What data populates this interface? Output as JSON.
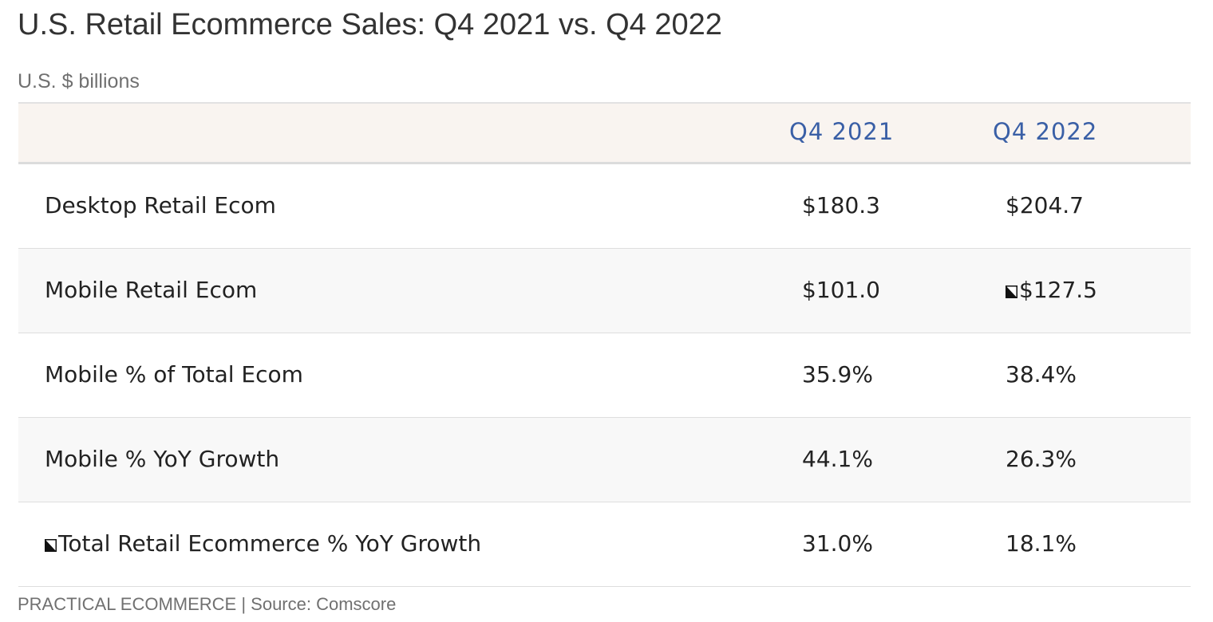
{
  "chart_data": {
    "type": "table",
    "title": "U.S. Retail Ecommerce Sales: Q4 2021 vs. Q4 2022",
    "subtitle": "U.S. $ billions",
    "columns": [
      "Q4 2021",
      "Q4 2022"
    ],
    "rows": [
      {
        "label": "Desktop Retail Ecom",
        "values": [
          "$180.3",
          "$204.7"
        ]
      },
      {
        "label": "Mobile Retail Ecom",
        "values": [
          "$101.0",
          "$127.5"
        ]
      },
      {
        "label": "Mobile % of Total Ecom",
        "values": [
          "35.9%",
          "38.4%"
        ]
      },
      {
        "label": "Mobile % YoY Growth",
        "values": [
          "44.1%",
          "26.3%"
        ]
      },
      {
        "label": "Total Retail Ecommerce % YoY Growth",
        "values": [
          "31.0%",
          "18.1%"
        ]
      }
    ],
    "source": "PRACTICAL ECOMMERCE | Source: Comscore"
  },
  "colors": {
    "header_background": "#f9f4f0",
    "header_text": "#3a5fa6",
    "alt_row_background": "#f8f8f8"
  }
}
